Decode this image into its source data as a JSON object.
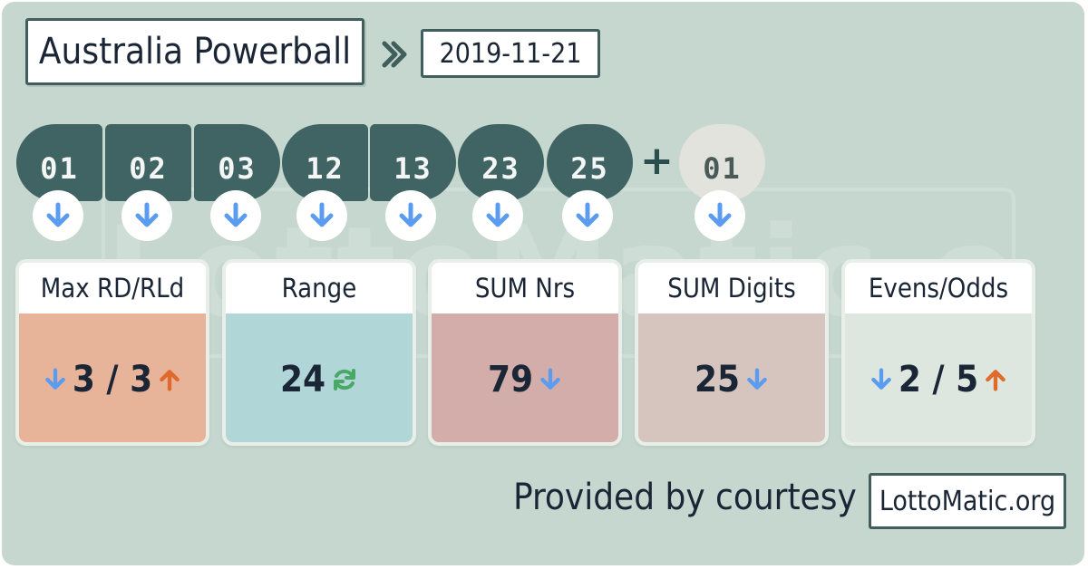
{
  "header": {
    "title": "Australia Powerball",
    "date": "2019-11-21"
  },
  "watermark": "LottoMatic.org",
  "balls": [
    "01",
    "02",
    "03",
    "12",
    "13",
    "23",
    "25"
  ],
  "extra_ball": "01",
  "indicators": {
    "ball_trend": "down-arrow-icon",
    "colors": {
      "down": "#5b9cf0",
      "up": "#e06a2c",
      "refresh": "#4aa866"
    }
  },
  "stats": [
    {
      "label": "Max RD/RLd",
      "value": "3 / 3",
      "color": "#e7b49a"
    },
    {
      "label": "Range",
      "value": "24",
      "color": "#b1d6d7"
    },
    {
      "label": "SUM Nrs",
      "value": "79",
      "color": "#d2adaa"
    },
    {
      "label": "SUM Digits",
      "value": "25",
      "color": "#d6c4bf"
    },
    {
      "label": "Evens/Odds",
      "value": "2 / 5",
      "color": "#dde7df"
    }
  ],
  "footer": {
    "courtesy": "Provided by courtesy of",
    "site": "LottoMatic.org"
  }
}
